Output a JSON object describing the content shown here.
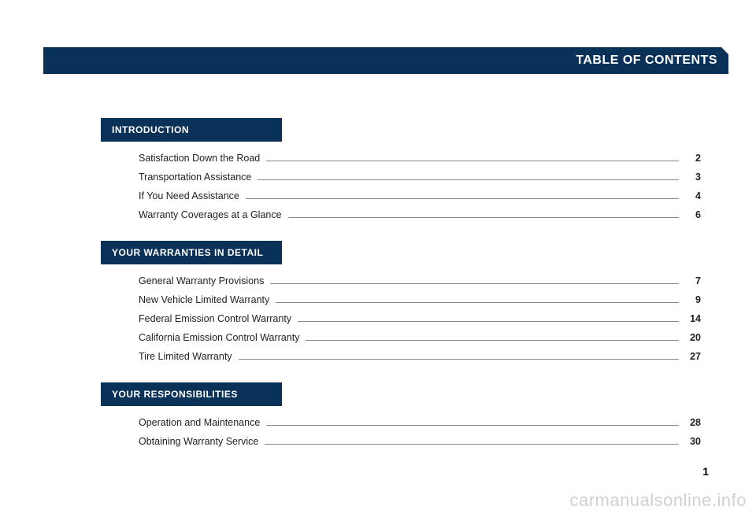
{
  "header": {
    "title": "TABLE OF CONTENTS",
    "bg_color": "#0a3158",
    "text_color": "#ffffff"
  },
  "page_number": "1",
  "watermark": "carmanualsonline.info",
  "sections": [
    {
      "label": "INTRODUCTION",
      "items": [
        {
          "title": "Satisfaction Down the Road",
          "page": "2"
        },
        {
          "title": "Transportation Assistance",
          "page": "3"
        },
        {
          "title": "If You Need Assistance",
          "page": "4"
        },
        {
          "title": "Warranty Coverages at a Glance",
          "page": "6"
        }
      ]
    },
    {
      "label": "YOUR WARRANTIES IN DETAIL",
      "items": [
        {
          "title": "General Warranty Provisions",
          "page": "7"
        },
        {
          "title": "New Vehicle Limited Warranty",
          "page": "9"
        },
        {
          "title": "Federal Emission Control Warranty",
          "page": "14"
        },
        {
          "title": "California Emission Control Warranty",
          "page": "20"
        },
        {
          "title": "Tire Limited Warranty",
          "page": "27"
        }
      ]
    },
    {
      "label": "YOUR RESPONSIBILITIES",
      "items": [
        {
          "title": "Operation and Maintenance",
          "page": "28"
        },
        {
          "title": "Obtaining Warranty Service",
          "page": "30"
        }
      ]
    }
  ],
  "style": {
    "section_label_bg": "#0a3158",
    "section_label_color": "#ffffff",
    "leader_color": "#888888",
    "text_color": "#222222",
    "page_bg": "#ffffff",
    "watermark_color": "rgba(120,120,120,0.35)"
  }
}
